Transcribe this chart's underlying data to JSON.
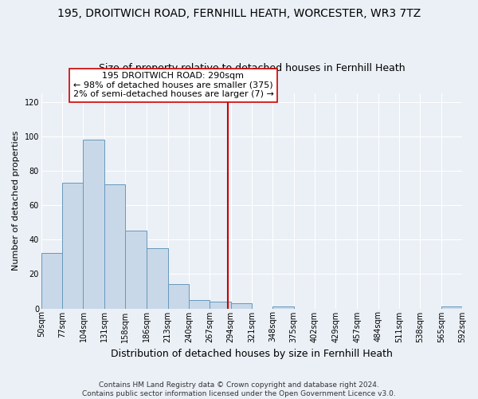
{
  "title": "195, DROITWICH ROAD, FERNHILL HEATH, WORCESTER, WR3 7TZ",
  "subtitle": "Size of property relative to detached houses in Fernhill Heath",
  "xlabel": "Distribution of detached houses by size in Fernhill Heath",
  "ylabel": "Number of detached properties",
  "bar_edges": [
    50,
    77,
    104,
    131,
    158,
    186,
    213,
    240,
    267,
    294,
    321,
    348,
    375,
    402,
    429,
    457,
    484,
    511,
    538,
    565,
    592
  ],
  "bar_heights": [
    32,
    73,
    98,
    72,
    45,
    35,
    14,
    5,
    4,
    3,
    0,
    1,
    0,
    0,
    0,
    0,
    0,
    0,
    0,
    1
  ],
  "bar_color": "#c8d8e8",
  "bar_edge_color": "#6699bb",
  "reference_line_x": 290,
  "reference_line_color": "#cc0000",
  "annotation_line1": "195 DROITWICH ROAD: 290sqm",
  "annotation_line2": "← 98% of detached houses are smaller (375)",
  "annotation_line3": "2% of semi-detached houses are larger (7) →",
  "annotation_box_color": "#ffffff",
  "annotation_box_edge_color": "#cc0000",
  "ylim": [
    0,
    125
  ],
  "yticks": [
    0,
    20,
    40,
    60,
    80,
    100,
    120
  ],
  "tick_labels": [
    "50sqm",
    "77sqm",
    "104sqm",
    "131sqm",
    "158sqm",
    "186sqm",
    "213sqm",
    "240sqm",
    "267sqm",
    "294sqm",
    "321sqm",
    "348sqm",
    "375sqm",
    "402sqm",
    "429sqm",
    "457sqm",
    "484sqm",
    "511sqm",
    "538sqm",
    "565sqm",
    "592sqm"
  ],
  "footer_text": "Contains HM Land Registry data © Crown copyright and database right 2024.\nContains public sector information licensed under the Open Government Licence v3.0.",
  "background_color": "#eaf0f6",
  "grid_color": "#ffffff",
  "title_fontsize": 10,
  "subtitle_fontsize": 9,
  "xlabel_fontsize": 9,
  "ylabel_fontsize": 8,
  "tick_fontsize": 7,
  "annotation_fontsize": 8,
  "footer_fontsize": 6.5
}
